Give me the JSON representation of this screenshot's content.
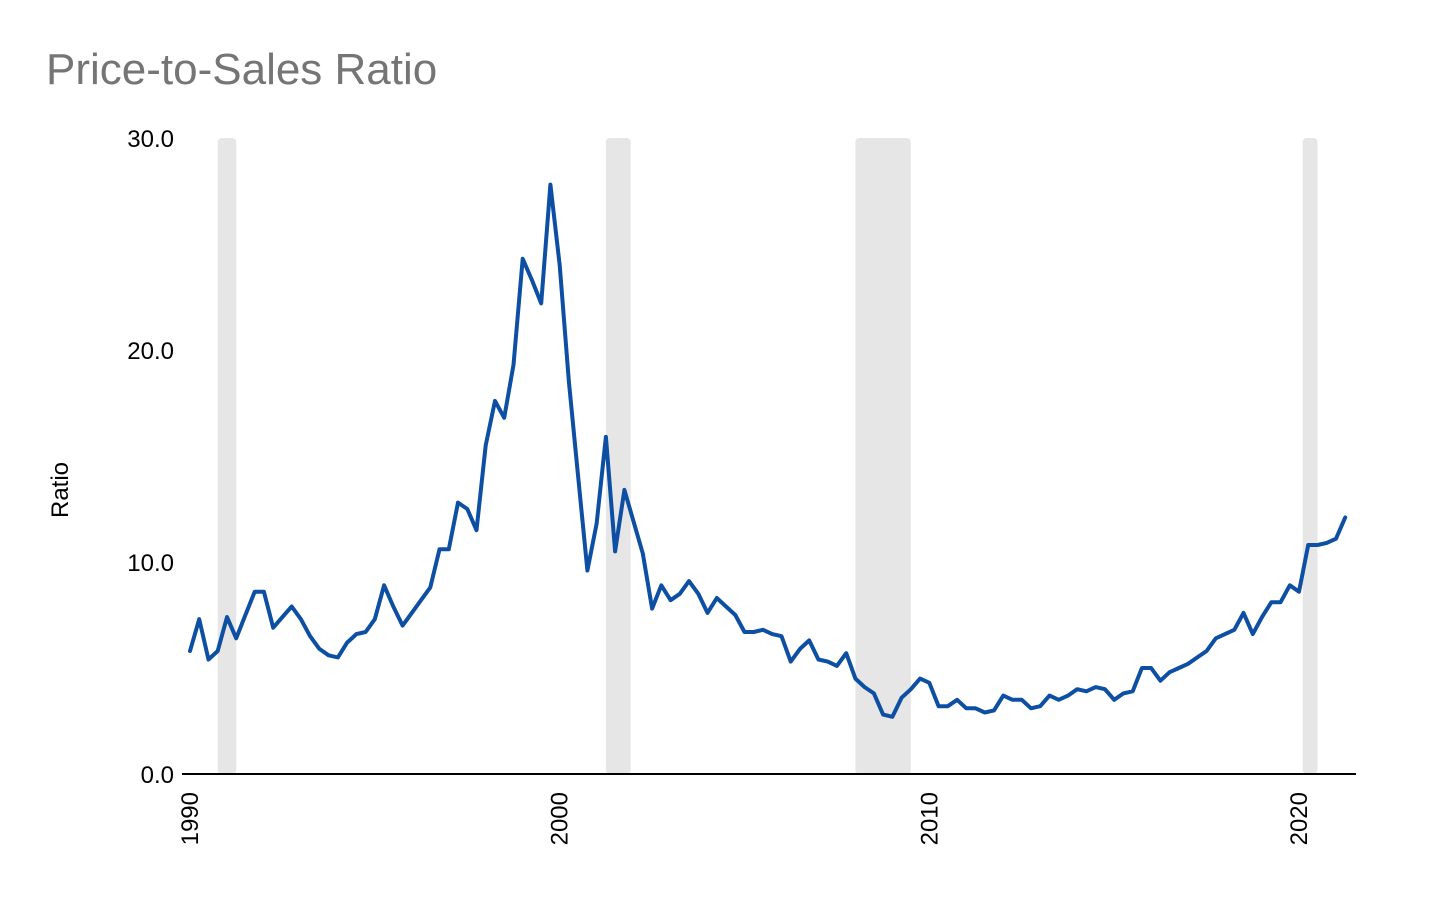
{
  "chart_data": {
    "type": "line",
    "title": "Price-to-Sales Ratio",
    "xlabel": "",
    "ylabel": "Ratio",
    "xlim": [
      1990,
      2021.5
    ],
    "ylim": [
      0,
      30
    ],
    "y_ticks": [
      "0.0",
      "10.0",
      "20.0",
      "30.0"
    ],
    "x_ticks": [
      "1990",
      "2000",
      "2010",
      "2020"
    ],
    "grid": false,
    "legend": "none",
    "line_color": "#0d4fa3",
    "shade_color": "#e6e6e6",
    "shaded_periods": [
      [
        1990.75,
        1991.25
      ],
      [
        2001.25,
        2001.92
      ],
      [
        2008.0,
        2009.5
      ],
      [
        2020.1,
        2020.5
      ]
    ],
    "series": [
      {
        "x": [
          1990.0,
          1990.25,
          1990.5,
          1990.75,
          1991.0,
          1991.25,
          1991.5,
          1991.75,
          1992.0,
          1992.25,
          1992.5,
          1992.75,
          1993.0,
          1993.25,
          1993.5,
          1993.75,
          1994.0,
          1994.25,
          1994.5,
          1994.75,
          1995.0,
          1995.25,
          1995.5,
          1995.75,
          1996.0,
          1996.25,
          1996.5,
          1996.75,
          1997.0,
          1997.25,
          1997.5,
          1997.75,
          1998.0,
          1998.25,
          1998.5,
          1998.75,
          1999.0,
          1999.25,
          1999.5,
          1999.75,
          2000.0,
          2000.25,
          2000.5,
          2000.75,
          2001.0,
          2001.25,
          2001.5,
          2001.75,
          2002.0,
          2002.25,
          2002.5,
          2002.75,
          2003.0,
          2003.25,
          2003.5,
          2003.75,
          2004.0,
          2004.25,
          2004.5,
          2004.75,
          2005.0,
          2005.25,
          2005.5,
          2005.75,
          2006.0,
          2006.25,
          2006.5,
          2006.75,
          2007.0,
          2007.25,
          2007.5,
          2007.75,
          2008.0,
          2008.25,
          2008.5,
          2008.75,
          2009.0,
          2009.25,
          2009.5,
          2009.75,
          2010.0,
          2010.25,
          2010.5,
          2010.75,
          2011.0,
          2011.25,
          2011.5,
          2011.75,
          2012.0,
          2012.25,
          2012.5,
          2012.75,
          2013.0,
          2013.25,
          2013.5,
          2013.75,
          2014.0,
          2014.25,
          2014.5,
          2014.75,
          2015.0,
          2015.25,
          2015.5,
          2015.75,
          2016.0,
          2016.25,
          2016.5,
          2016.75,
          2017.0,
          2017.25,
          2017.5,
          2017.75,
          2018.0,
          2018.25,
          2018.5,
          2018.75,
          2019.0,
          2019.25,
          2019.5,
          2019.75,
          2020.0,
          2020.25,
          2020.5,
          2020.75,
          2021.0,
          2021.25
        ],
        "y": [
          5.8,
          7.3,
          5.4,
          5.8,
          7.4,
          6.4,
          7.5,
          8.6,
          8.6,
          6.9,
          7.4,
          7.9,
          7.3,
          6.5,
          5.9,
          5.6,
          5.5,
          6.2,
          6.6,
          6.7,
          7.3,
          8.9,
          7.9,
          7.0,
          7.6,
          8.2,
          8.8,
          10.6,
          10.6,
          12.8,
          12.5,
          11.5,
          15.5,
          17.6,
          16.8,
          19.3,
          24.3,
          23.3,
          22.2,
          27.8,
          24.0,
          18.5,
          14.0,
          9.6,
          11.8,
          15.9,
          10.5,
          13.4,
          11.9,
          10.4,
          7.8,
          8.9,
          8.2,
          8.5,
          9.1,
          8.5,
          7.6,
          8.3,
          7.9,
          7.5,
          6.7,
          6.7,
          6.8,
          6.6,
          6.5,
          5.3,
          5.9,
          6.3,
          5.4,
          5.3,
          5.1,
          5.7,
          4.5,
          4.1,
          3.8,
          2.8,
          2.7,
          3.6,
          4.0,
          4.5,
          4.3,
          3.2,
          3.2,
          3.5,
          3.1,
          3.1,
          2.9,
          3.0,
          3.7,
          3.5,
          3.5,
          3.1,
          3.2,
          3.7,
          3.5,
          3.7,
          4.0,
          3.9,
          4.1,
          4.0,
          3.5,
          3.8,
          3.9,
          5.0,
          5.0,
          4.4,
          4.8,
          5.0,
          5.2,
          5.5,
          5.8,
          6.4,
          6.6,
          6.8,
          7.6,
          6.6,
          7.4,
          8.1,
          8.1,
          8.9,
          8.6,
          10.8,
          10.8,
          10.9,
          11.1,
          12.1
        ]
      }
    ]
  }
}
